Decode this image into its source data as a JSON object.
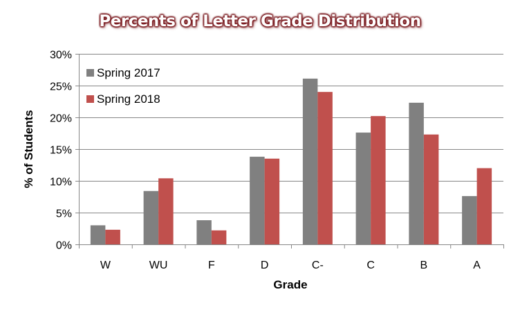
{
  "chart_data": {
    "type": "bar",
    "title": "Percents of Letter Grade Distribution",
    "xlabel": "Grade",
    "ylabel": "% of Students",
    "ylim": [
      0,
      30
    ],
    "yticks": [
      "0%",
      "5%",
      "10%",
      "15%",
      "20%",
      "25%",
      "30%"
    ],
    "grid": true,
    "legend": "top-left",
    "categories": [
      "W",
      "WU",
      "F",
      "D",
      "C-",
      "C",
      "B",
      "A"
    ],
    "series": [
      {
        "name": "Spring 2017",
        "color": "#808080",
        "values": [
          3.0,
          8.4,
          3.8,
          13.8,
          26.1,
          17.6,
          22.3,
          7.6
        ]
      },
      {
        "name": "Spring 2018",
        "color": "#c0504d",
        "values": [
          2.3,
          10.4,
          2.2,
          13.5,
          24.0,
          20.2,
          17.3,
          12.0
        ]
      }
    ]
  }
}
